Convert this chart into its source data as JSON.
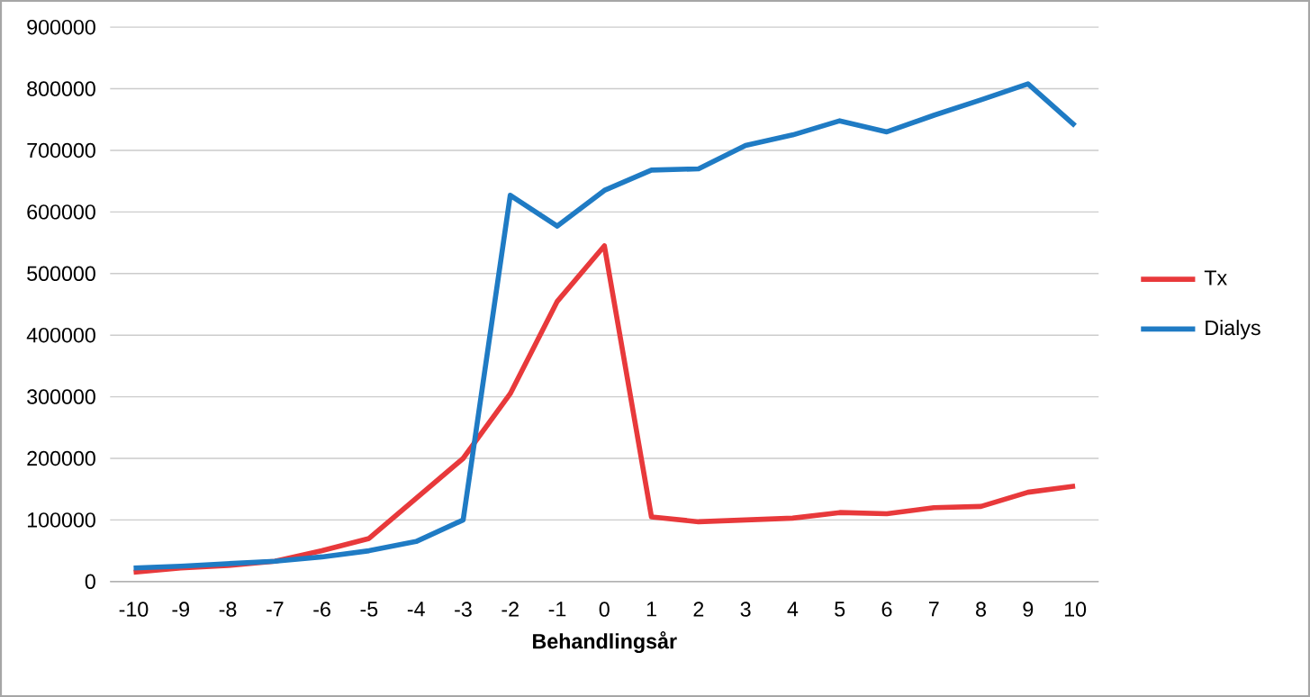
{
  "chart_data": {
    "type": "line",
    "xlabel": "Behandlingsår",
    "categories": [
      "-10",
      "-9",
      "-8",
      "-7",
      "-6",
      "-5",
      "-4",
      "-3",
      "-2",
      "-1",
      "0",
      "1",
      "2",
      "3",
      "4",
      "5",
      "6",
      "7",
      "8",
      "9",
      "10"
    ],
    "series": [
      {
        "name": "Tx",
        "color": "#e8393b",
        "values": [
          15000,
          22000,
          26000,
          33000,
          50000,
          70000,
          135000,
          200000,
          305000,
          455000,
          545000,
          105000,
          97000,
          100000,
          103000,
          112000,
          110000,
          120000,
          122000,
          145000,
          155000
        ]
      },
      {
        "name": "Dialys",
        "color": "#1f7bc4",
        "values": [
          22000,
          25000,
          29000,
          33000,
          40000,
          50000,
          65000,
          100000,
          627000,
          577000,
          635000,
          668000,
          670000,
          708000,
          725000,
          748000,
          730000,
          757000,
          782000,
          808000,
          740000
        ]
      }
    ],
    "ylim": [
      0,
      900000
    ],
    "yticks": [
      0,
      100000,
      200000,
      300000,
      400000,
      500000,
      600000,
      700000,
      800000,
      900000
    ],
    "grid": "y",
    "legend": "right"
  }
}
